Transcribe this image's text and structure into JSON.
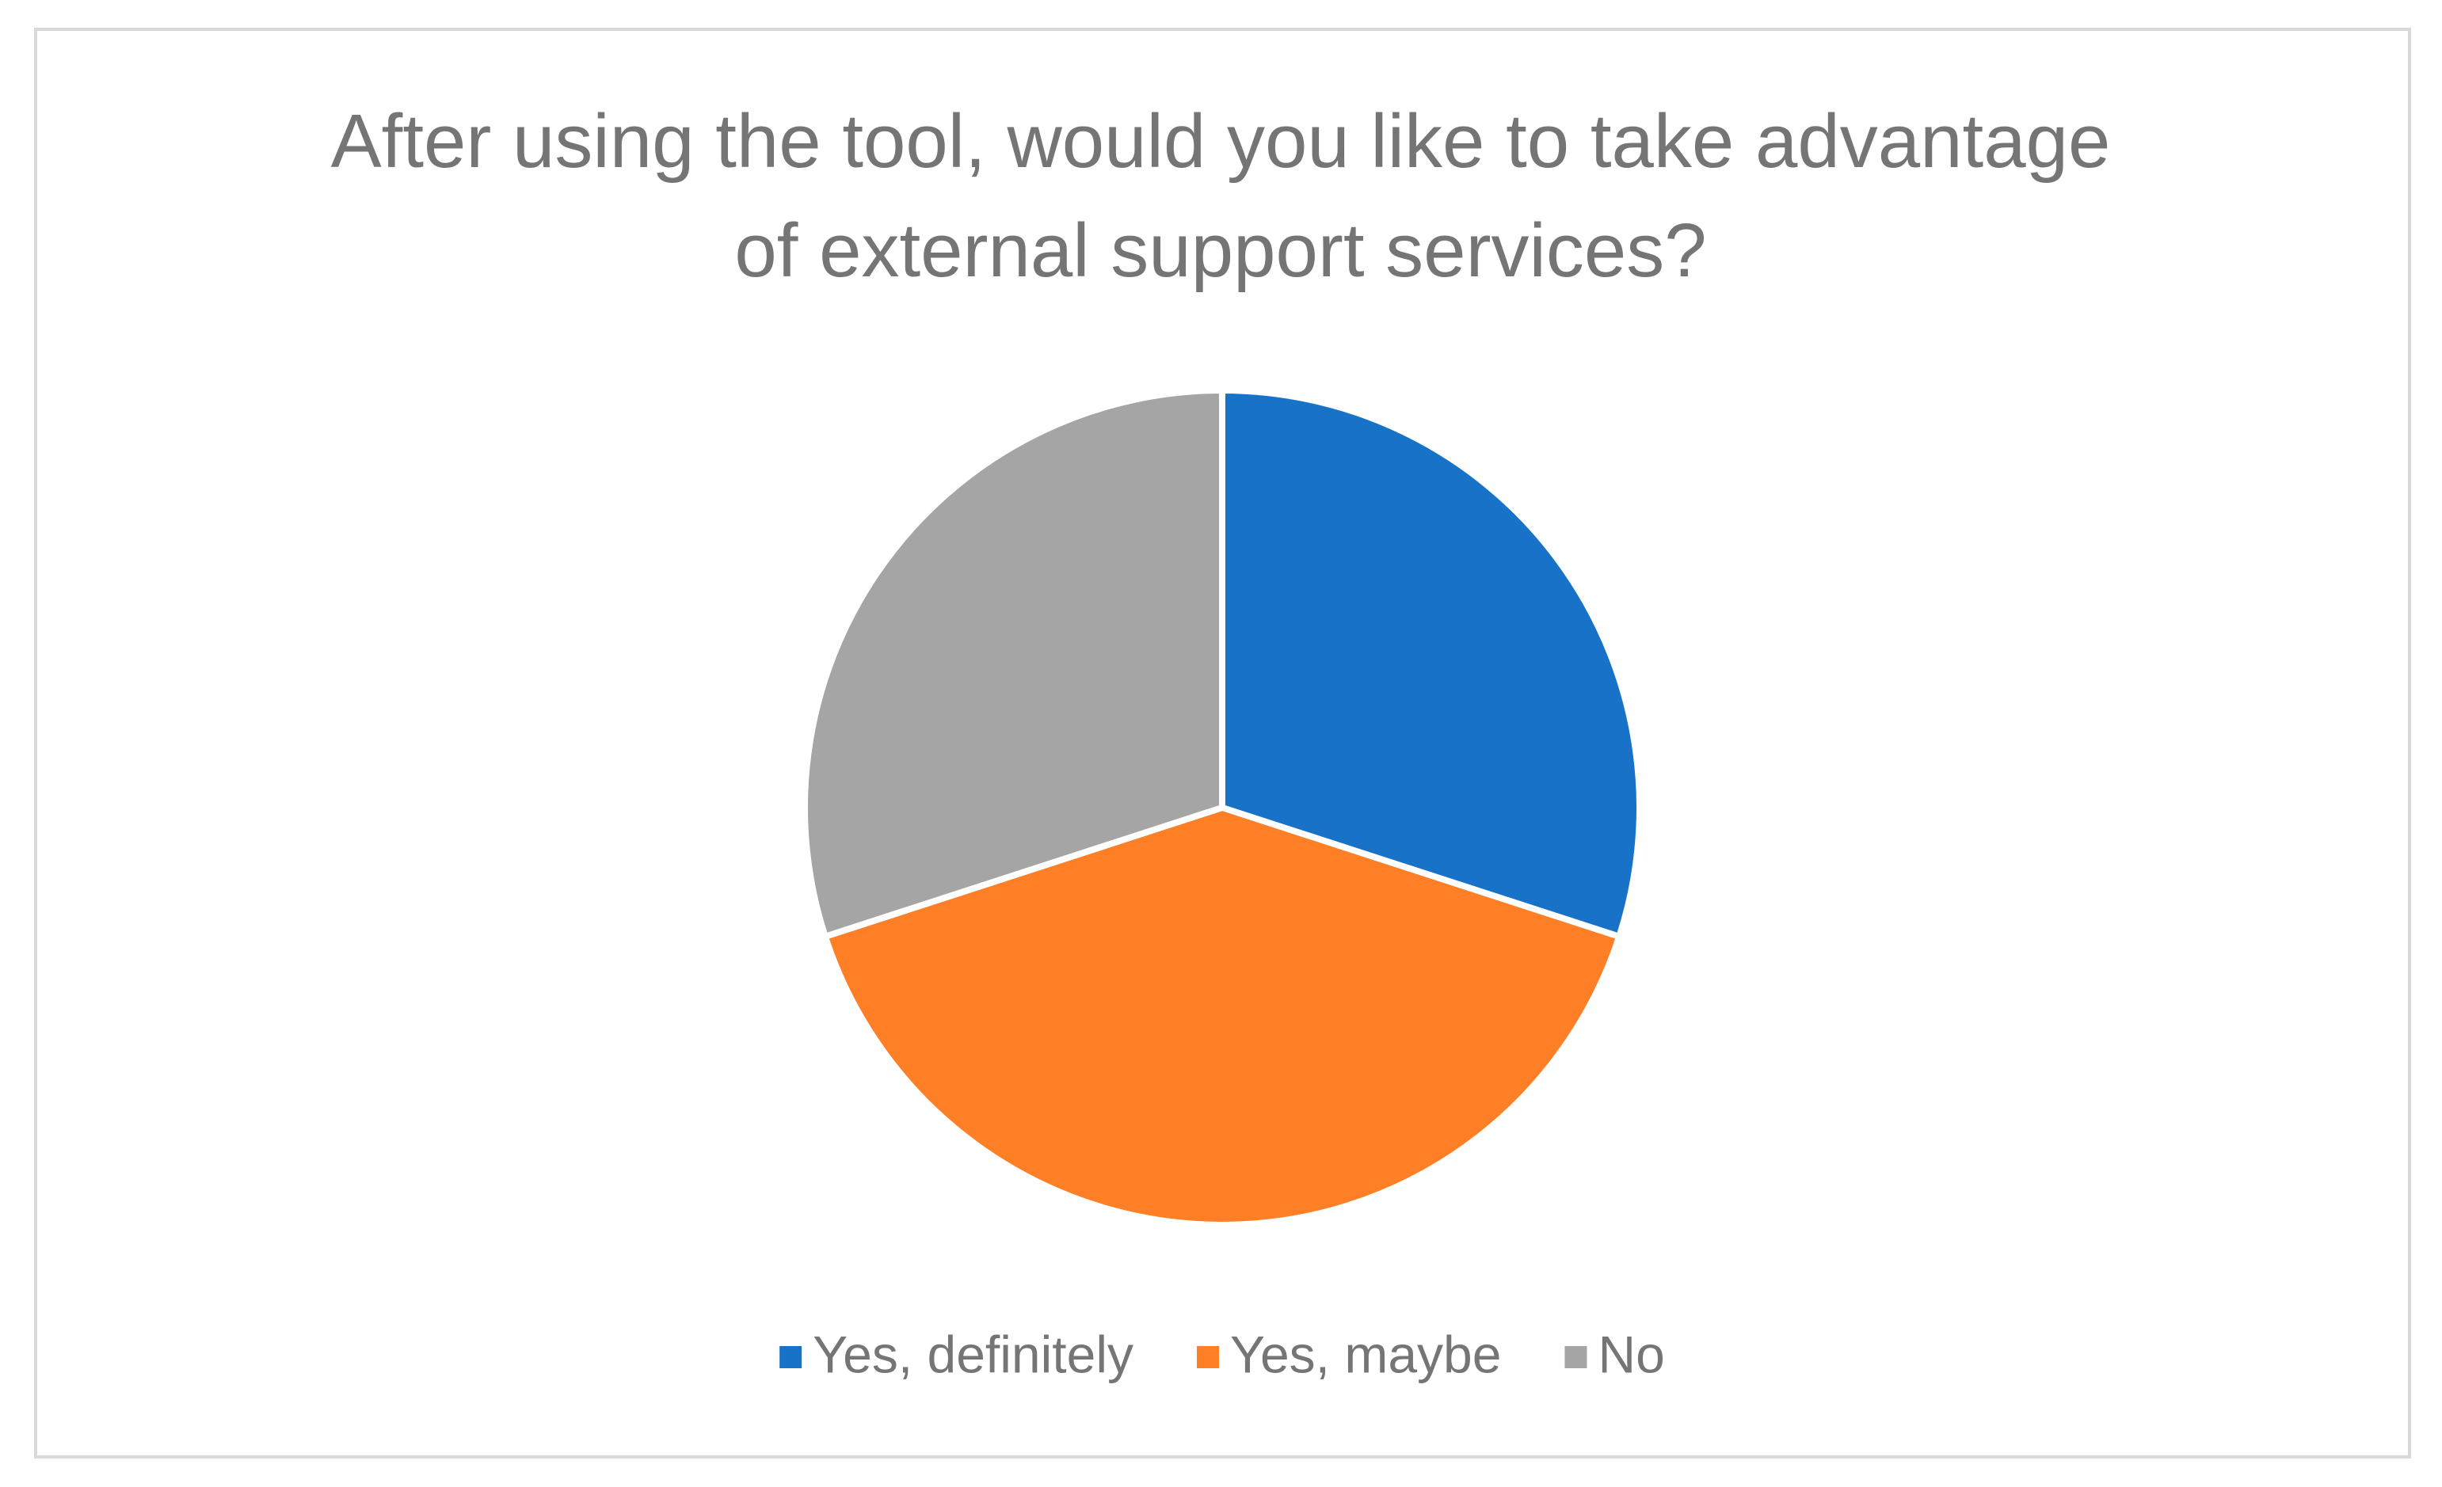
{
  "chart_data": {
    "type": "pie",
    "title": "After using the tool, would you like to take advantage of external support services?",
    "categories": [
      "Yes, definitely",
      "Yes, maybe",
      "No"
    ],
    "values": [
      30,
      40,
      30
    ],
    "colors": [
      "#1872c8",
      "#fe7f26",
      "#a5a5a5"
    ],
    "legend": "bottom"
  }
}
